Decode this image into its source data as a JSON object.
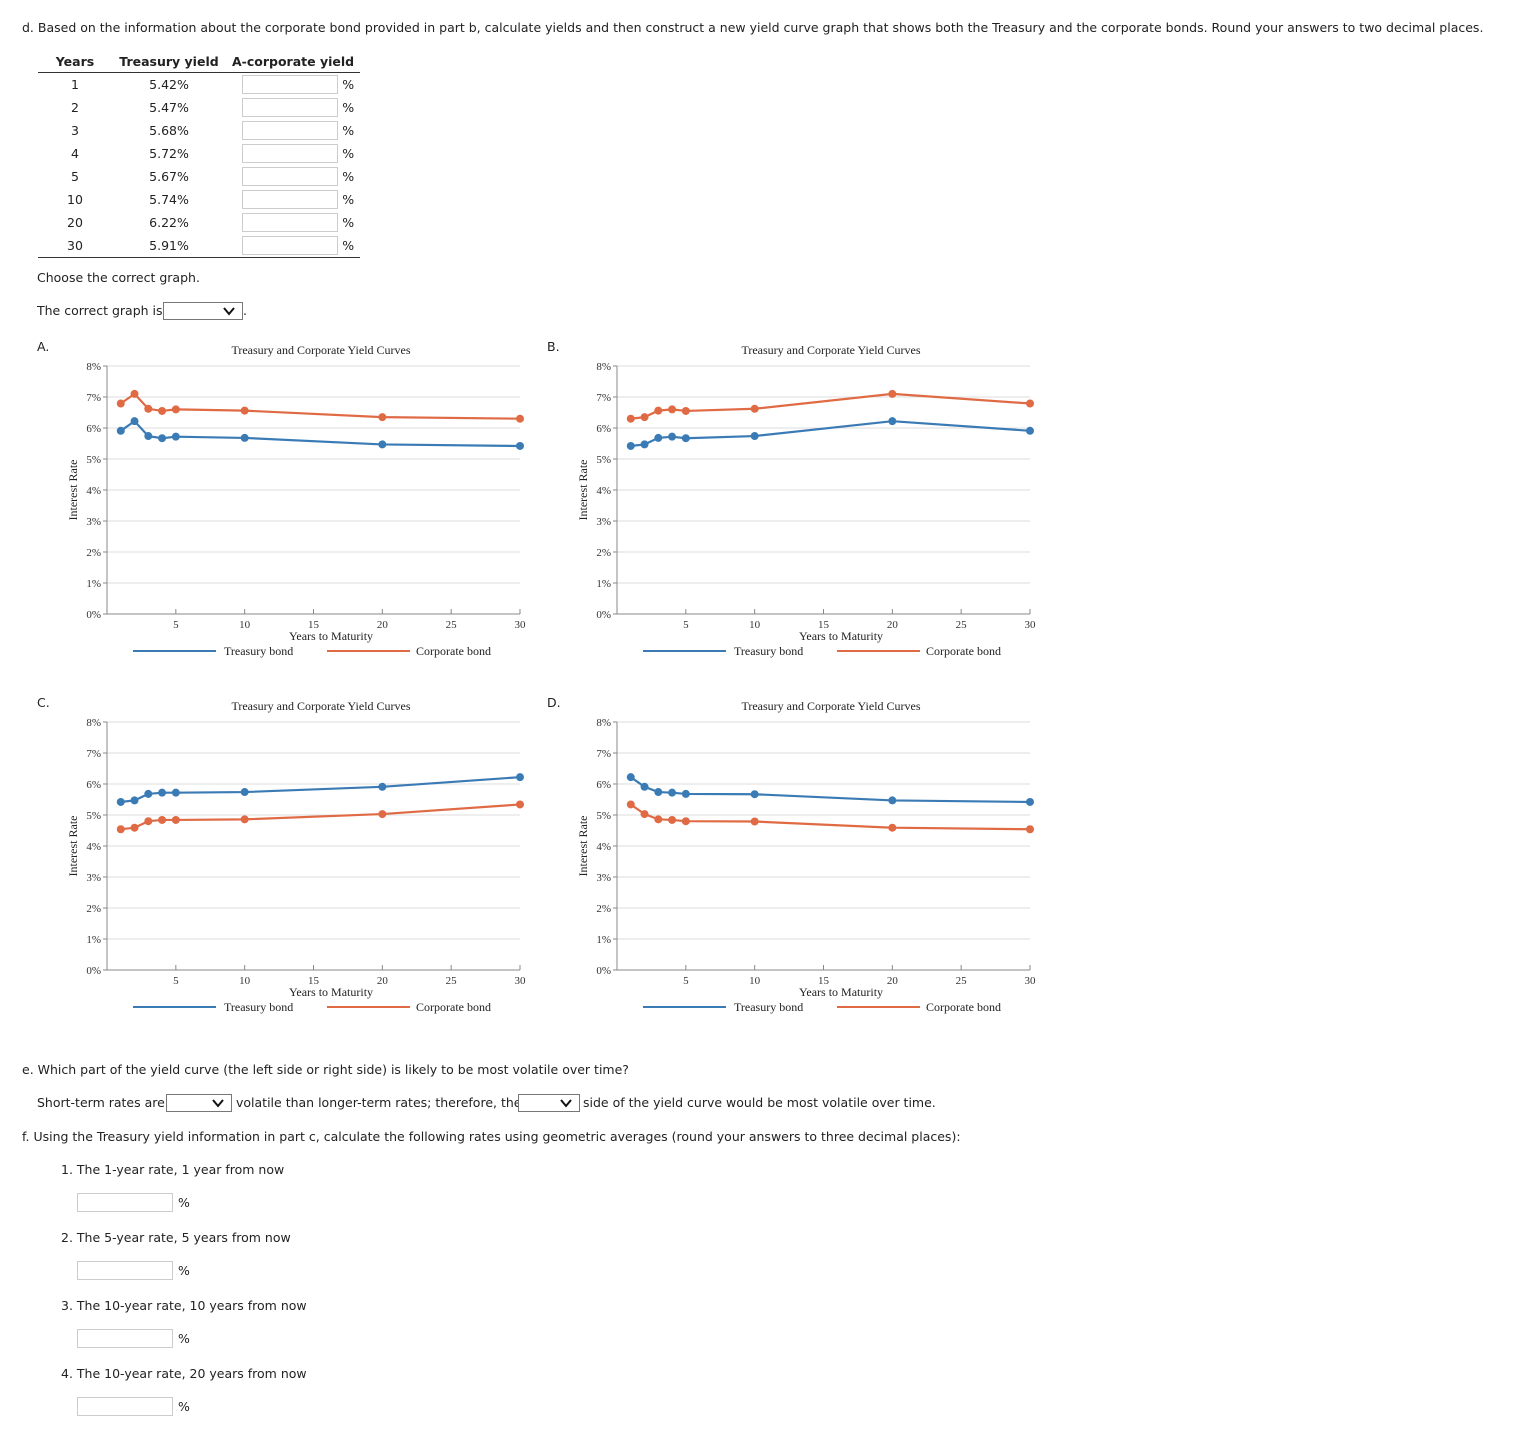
{
  "part_d": {
    "question": "d. Based on the information about the corporate bond provided in part b, calculate yields and then construct a new yield curve graph that shows both the Treasury and the corporate bonds. Round your answers to two decimal places.",
    "table": {
      "headers": [
        "Years",
        "Treasury yield",
        "A-corporate yield"
      ],
      "rows": [
        {
          "years": "1",
          "treasury": "5.42%",
          "corporate": "",
          "unit": "%"
        },
        {
          "years": "2",
          "treasury": "5.47%",
          "corporate": "",
          "unit": "%"
        },
        {
          "years": "3",
          "treasury": "5.68%",
          "corporate": "",
          "unit": "%"
        },
        {
          "years": "4",
          "treasury": "5.72%",
          "corporate": "",
          "unit": "%"
        },
        {
          "years": "5",
          "treasury": "5.67%",
          "corporate": "",
          "unit": "%"
        },
        {
          "years": "10",
          "treasury": "5.74%",
          "corporate": "",
          "unit": "%"
        },
        {
          "years": "20",
          "treasury": "6.22%",
          "corporate": "",
          "unit": "%"
        },
        {
          "years": "30",
          "treasury": "5.91%",
          "corporate": "",
          "unit": "%"
        }
      ]
    },
    "choose_text": "Choose the correct graph.",
    "correct_graph_prefix": "The correct graph is",
    "correct_graph_suffix": ".",
    "correct_graph_value": ""
  },
  "charts_labels": {
    "title": "Treasury and Corporate Yield Curves",
    "xlabel": "Years to Maturity",
    "ylabel": "Interest Rate",
    "legend_treasury": "Treasury bond",
    "legend_corporate": "Corporate bond",
    "y_ticks": [
      "0%",
      "1%",
      "2%",
      "3%",
      "4%",
      "5%",
      "6%",
      "7%",
      "8%"
    ],
    "x_ticks": [
      "5",
      "10",
      "15",
      "20",
      "25",
      "30"
    ],
    "treasury_color": "#3a7bb5",
    "corporate_color": "#e06a44"
  },
  "chart_data": [
    {
      "option": "A.",
      "type": "line",
      "title": "Treasury and Corporate Yield Curves",
      "xlabel": "Years to Maturity",
      "ylabel": "Interest Rate",
      "xlim": [
        0,
        30
      ],
      "ylim": [
        0,
        8
      ],
      "grid": true,
      "legend": "bottom",
      "series": [
        {
          "name": "Treasury bond",
          "x": [
            1,
            2,
            3,
            4,
            5,
            10,
            20,
            30
          ],
          "y": [
            5.91,
            6.22,
            5.74,
            5.67,
            5.72,
            5.68,
            5.47,
            5.42
          ]
        },
        {
          "name": "Corporate bond",
          "x": [
            1,
            2,
            3,
            4,
            5,
            10,
            20,
            30
          ],
          "y": [
            6.79,
            7.1,
            6.62,
            6.55,
            6.6,
            6.56,
            6.35,
            6.3
          ]
        }
      ]
    },
    {
      "option": "B.",
      "type": "line",
      "title": "Treasury and Corporate Yield Curves",
      "xlabel": "Years to Maturity",
      "ylabel": "Interest Rate",
      "xlim": [
        0,
        30
      ],
      "ylim": [
        0,
        8
      ],
      "grid": true,
      "legend": "bottom",
      "series": [
        {
          "name": "Treasury bond",
          "x": [
            1,
            2,
            3,
            4,
            5,
            10,
            20,
            30
          ],
          "y": [
            5.42,
            5.47,
            5.68,
            5.72,
            5.67,
            5.74,
            6.22,
            5.91
          ]
        },
        {
          "name": "Corporate bond",
          "x": [
            1,
            2,
            3,
            4,
            5,
            10,
            20,
            30
          ],
          "y": [
            6.3,
            6.35,
            6.56,
            6.6,
            6.55,
            6.62,
            7.1,
            6.79
          ]
        }
      ]
    },
    {
      "option": "C.",
      "type": "line",
      "title": "Treasury and Corporate Yield Curves",
      "xlabel": "Years to Maturity",
      "ylabel": "Interest Rate",
      "xlim": [
        0,
        30
      ],
      "ylim": [
        0,
        8
      ],
      "grid": true,
      "legend": "bottom",
      "series": [
        {
          "name": "Treasury bond",
          "x": [
            1,
            2,
            3,
            4,
            5,
            10,
            20,
            30
          ],
          "y": [
            5.42,
            5.47,
            5.68,
            5.72,
            5.72,
            5.74,
            5.91,
            6.22
          ]
        },
        {
          "name": "Corporate bond",
          "x": [
            1,
            2,
            3,
            4,
            5,
            10,
            20,
            30
          ],
          "y": [
            4.54,
            4.59,
            4.8,
            4.84,
            4.84,
            4.86,
            5.03,
            5.34
          ]
        }
      ]
    },
    {
      "option": "D.",
      "type": "line",
      "title": "Treasury and Corporate Yield Curves",
      "xlabel": "Years to Maturity",
      "ylabel": "Interest Rate",
      "xlim": [
        0,
        30
      ],
      "ylim": [
        0,
        8
      ],
      "grid": true,
      "legend": "bottom",
      "series": [
        {
          "name": "Treasury bond",
          "x": [
            1,
            2,
            3,
            4,
            5,
            10,
            20,
            30
          ],
          "y": [
            6.22,
            5.91,
            5.74,
            5.72,
            5.68,
            5.67,
            5.47,
            5.42
          ]
        },
        {
          "name": "Corporate bond",
          "x": [
            1,
            2,
            3,
            4,
            5,
            10,
            20,
            30
          ],
          "y": [
            5.34,
            5.03,
            4.86,
            4.84,
            4.8,
            4.79,
            4.59,
            4.54
          ]
        }
      ]
    }
  ],
  "part_e": {
    "question": "e. Which part of the yield curve (the left side or right side) is likely to be most volatile over time?",
    "s1": "Short-term rates are",
    "s2": "volatile than longer-term rates; therefore, the",
    "s3": "side of the yield curve would be most volatile over time."
  },
  "part_f": {
    "question": "f. Using the Treasury yield information in part c, calculate the following rates using geometric averages (round your answers to three decimal places):",
    "items": [
      {
        "label": "1. The 1-year rate, 1 year from now",
        "unit": "%"
      },
      {
        "label": "2. The 5-year rate, 5 years from now",
        "unit": "%"
      },
      {
        "label": "3. The 10-year rate, 10 years from now",
        "unit": "%"
      },
      {
        "label": "4. The 10-year rate, 20 years from now",
        "unit": "%"
      }
    ]
  }
}
